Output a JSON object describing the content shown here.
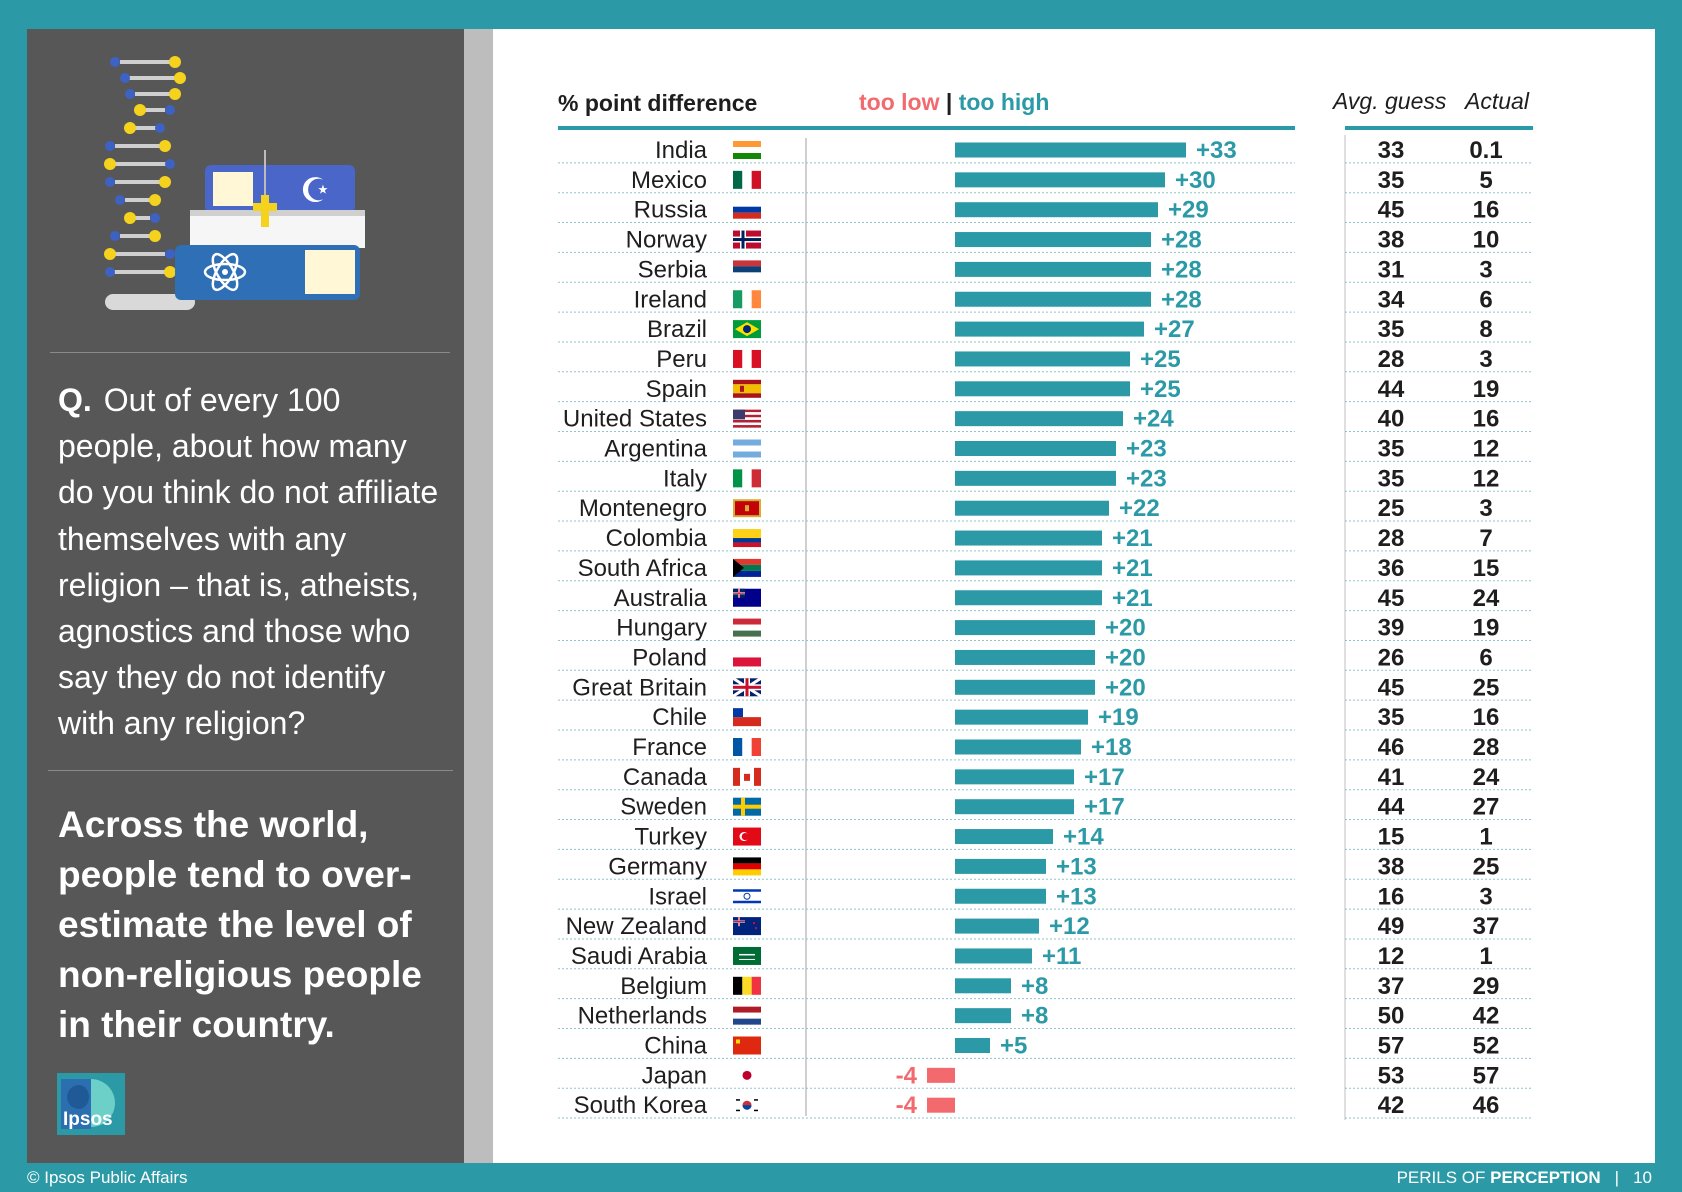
{
  "sidebar": {
    "question_label": "Q.",
    "question_text": "Out of every 100 people, about how many do you think do not affiliate themselves with any religion – that is, atheists, agnostics and those who say they do not identify with any religion?",
    "headline": "Across the world, people tend to over-estimate the level of non-religious people in their country.",
    "logo_text": "Ipsos"
  },
  "footer": {
    "copyright": "© Ipsos Public Affairs",
    "series_prefix": "PERILS OF ",
    "series_bold": "PERCEPTION",
    "page_number": "10"
  },
  "colors": {
    "accent": "#2b9aa6",
    "bar_high": "#2b9aa6",
    "bar_low": "#f26a6e",
    "sidebar": "#575757"
  },
  "chart_data": {
    "type": "bar",
    "title": "% point difference",
    "legend_low": "too low",
    "legend_sep": "|",
    "legend_high": "too high",
    "col_guess_label": "Avg. guess",
    "col_actual_label": "Actual",
    "xlim": [
      -10,
      35
    ],
    "rows": [
      {
        "country": "India",
        "diff": 33,
        "label": "+33",
        "guess": "33",
        "actual": "0.1",
        "flag": "india-flag"
      },
      {
        "country": "Mexico",
        "diff": 30,
        "label": "+30",
        "guess": "35",
        "actual": "5",
        "flag": "mexico-flag"
      },
      {
        "country": "Russia",
        "diff": 29,
        "label": "+29",
        "guess": "45",
        "actual": "16",
        "flag": "russia-flag"
      },
      {
        "country": "Norway",
        "diff": 28,
        "label": "+28",
        "guess": "38",
        "actual": "10",
        "flag": "norway-flag"
      },
      {
        "country": "Serbia",
        "diff": 28,
        "label": "+28",
        "guess": "31",
        "actual": "3",
        "flag": "serbia-flag"
      },
      {
        "country": "Ireland",
        "diff": 28,
        "label": "+28",
        "guess": "34",
        "actual": "6",
        "flag": "ireland-flag"
      },
      {
        "country": "Brazil",
        "diff": 27,
        "label": "+27",
        "guess": "35",
        "actual": "8",
        "flag": "brazil-flag"
      },
      {
        "country": "Peru",
        "diff": 25,
        "label": "+25",
        "guess": "28",
        "actual": "3",
        "flag": "peru-flag"
      },
      {
        "country": "Spain",
        "diff": 25,
        "label": "+25",
        "guess": "44",
        "actual": "19",
        "flag": "spain-flag"
      },
      {
        "country": "United States",
        "diff": 24,
        "label": "+24",
        "guess": "40",
        "actual": "16",
        "flag": "usa-flag"
      },
      {
        "country": "Argentina",
        "diff": 23,
        "label": "+23",
        "guess": "35",
        "actual": "12",
        "flag": "argentina-flag"
      },
      {
        "country": "Italy",
        "diff": 23,
        "label": "+23",
        "guess": "35",
        "actual": "12",
        "flag": "italy-flag"
      },
      {
        "country": "Montenegro",
        "diff": 22,
        "label": "+22",
        "guess": "25",
        "actual": "3",
        "flag": "montenegro-flag"
      },
      {
        "country": "Colombia",
        "diff": 21,
        "label": "+21",
        "guess": "28",
        "actual": "7",
        "flag": "colombia-flag"
      },
      {
        "country": "South Africa",
        "diff": 21,
        "label": "+21",
        "guess": "36",
        "actual": "15",
        "flag": "south-africa-flag"
      },
      {
        "country": "Australia",
        "diff": 21,
        "label": "+21",
        "guess": "45",
        "actual": "24",
        "flag": "australia-flag"
      },
      {
        "country": "Hungary",
        "diff": 20,
        "label": "+20",
        "guess": "39",
        "actual": "19",
        "flag": "hungary-flag"
      },
      {
        "country": "Poland",
        "diff": 20,
        "label": "+20",
        "guess": "26",
        "actual": "6",
        "flag": "poland-flag"
      },
      {
        "country": "Great Britain",
        "diff": 20,
        "label": "+20",
        "guess": "45",
        "actual": "25",
        "flag": "great-britain-flag"
      },
      {
        "country": "Chile",
        "diff": 19,
        "label": "+19",
        "guess": "35",
        "actual": "16",
        "flag": "chile-flag"
      },
      {
        "country": "France",
        "diff": 18,
        "label": "+18",
        "guess": "46",
        "actual": "28",
        "flag": "france-flag"
      },
      {
        "country": "Canada",
        "diff": 17,
        "label": "+17",
        "guess": "41",
        "actual": "24",
        "flag": "canada-flag"
      },
      {
        "country": "Sweden",
        "diff": 17,
        "label": "+17",
        "guess": "44",
        "actual": "27",
        "flag": "sweden-flag"
      },
      {
        "country": "Turkey",
        "diff": 14,
        "label": "+14",
        "guess": "15",
        "actual": "1",
        "flag": "turkey-flag"
      },
      {
        "country": "Germany",
        "diff": 13,
        "label": "+13",
        "guess": "38",
        "actual": "25",
        "flag": "germany-flag"
      },
      {
        "country": "Israel",
        "diff": 13,
        "label": "+13",
        "guess": "16",
        "actual": "3",
        "flag": "israel-flag"
      },
      {
        "country": "New Zealand",
        "diff": 12,
        "label": "+12",
        "guess": "49",
        "actual": "37",
        "flag": "new-zealand-flag"
      },
      {
        "country": "Saudi Arabia",
        "diff": 11,
        "label": "+11",
        "guess": "12",
        "actual": "1",
        "flag": "saudi-arabia-flag"
      },
      {
        "country": "Belgium",
        "diff": 8,
        "label": "+8",
        "guess": "37",
        "actual": "29",
        "flag": "belgium-flag"
      },
      {
        "country": "Netherlands",
        "diff": 8,
        "label": "+8",
        "guess": "50",
        "actual": "42",
        "flag": "netherlands-flag"
      },
      {
        "country": "China",
        "diff": 5,
        "label": "+5",
        "guess": "57",
        "actual": "52",
        "flag": "china-flag"
      },
      {
        "country": "Japan",
        "diff": -4,
        "label": "-4",
        "guess": "53",
        "actual": "57",
        "flag": "japan-flag"
      },
      {
        "country": "South Korea",
        "diff": -4,
        "label": "-4",
        "guess": "42",
        "actual": "46",
        "flag": "south-korea-flag"
      }
    ]
  }
}
